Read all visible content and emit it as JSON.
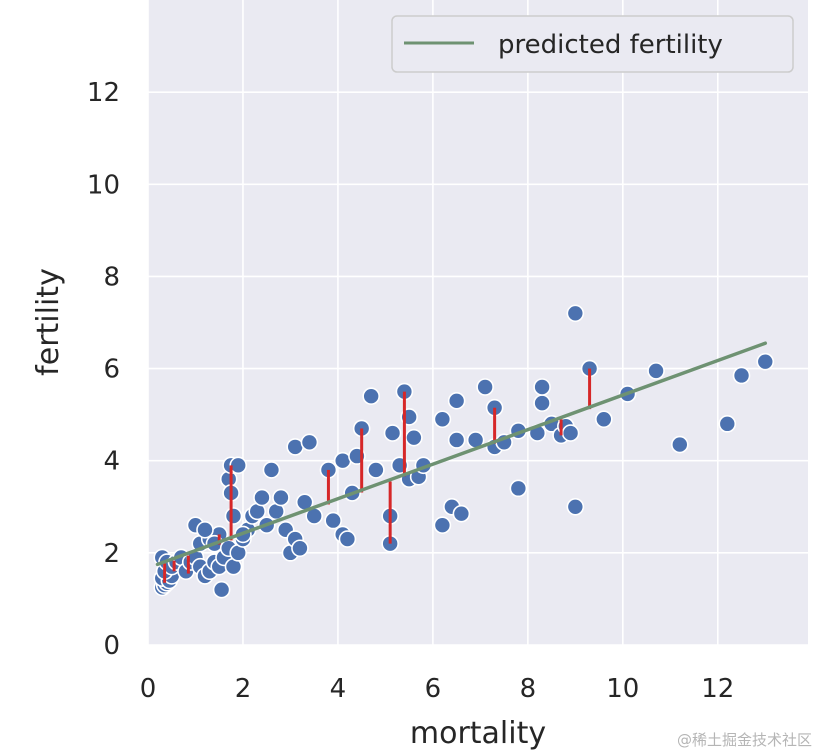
{
  "chart_data": {
    "type": "scatter",
    "xlabel": "mortality",
    "ylabel": "fertility",
    "xlim": [
      0,
      13.9
    ],
    "ylim": [
      0,
      14
    ],
    "x_ticks": [
      "0",
      "2",
      "4",
      "6",
      "8",
      "10",
      "12"
    ],
    "y_ticks": [
      "0",
      "2",
      "4",
      "6",
      "8",
      "10",
      "12"
    ],
    "grid": true,
    "legend": {
      "placement": "top-right",
      "label": "predicted fertility"
    },
    "colors": {
      "background": "#eaeaf2",
      "grid": "#ffffff",
      "points": "#4c72b0",
      "point_edge": "#ffffff",
      "regression_line": "#6e9272",
      "residuals": "#d62728"
    },
    "regression_line": {
      "x": [
        0.2,
        13.0
      ],
      "y": [
        1.75,
        6.55
      ]
    },
    "points": [
      [
        0.3,
        1.25
      ],
      [
        0.35,
        1.3
      ],
      [
        0.4,
        1.35
      ],
      [
        0.3,
        1.45
      ],
      [
        0.45,
        1.4
      ],
      [
        0.5,
        1.5
      ],
      [
        0.35,
        1.6
      ],
      [
        0.3,
        1.9
      ],
      [
        0.4,
        1.8
      ],
      [
        0.5,
        1.7
      ],
      [
        0.6,
        1.8
      ],
      [
        0.7,
        1.9
      ],
      [
        0.8,
        1.6
      ],
      [
        0.9,
        1.8
      ],
      [
        1.0,
        1.9
      ],
      [
        1.1,
        1.7
      ],
      [
        1.2,
        1.5
      ],
      [
        1.3,
        1.6
      ],
      [
        1.4,
        1.8
      ],
      [
        1.5,
        1.7
      ],
      [
        1.55,
        1.2
      ],
      [
        1.6,
        1.9
      ],
      [
        1.1,
        2.2
      ],
      [
        1.3,
        2.3
      ],
      [
        1.5,
        2.4
      ],
      [
        1.0,
        2.6
      ],
      [
        1.2,
        2.5
      ],
      [
        1.4,
        2.2
      ],
      [
        1.7,
        2.1
      ],
      [
        1.8,
        1.7
      ],
      [
        1.9,
        2.0
      ],
      [
        2.0,
        2.3
      ],
      [
        2.1,
        2.5
      ],
      [
        2.2,
        2.8
      ],
      [
        2.3,
        2.9
      ],
      [
        2.4,
        3.2
      ],
      [
        2.5,
        2.6
      ],
      [
        2.6,
        3.8
      ],
      [
        2.7,
        2.9
      ],
      [
        2.8,
        3.2
      ],
      [
        2.9,
        2.5
      ],
      [
        3.0,
        2.0
      ],
      [
        3.1,
        2.3
      ],
      [
        3.2,
        2.1
      ],
      [
        3.3,
        3.1
      ],
      [
        3.5,
        2.8
      ],
      [
        3.1,
        4.3
      ],
      [
        3.4,
        4.4
      ],
      [
        1.7,
        3.6
      ],
      [
        1.75,
        3.3
      ],
      [
        1.75,
        3.9
      ],
      [
        1.8,
        2.8
      ],
      [
        1.9,
        3.9
      ],
      [
        2.0,
        2.4
      ],
      [
        3.8,
        3.8
      ],
      [
        3.9,
        2.7
      ],
      [
        4.1,
        2.4
      ],
      [
        4.2,
        2.3
      ],
      [
        4.1,
        4.0
      ],
      [
        4.3,
        3.3
      ],
      [
        4.4,
        4.1
      ],
      [
        4.5,
        4.7
      ],
      [
        4.7,
        5.4
      ],
      [
        4.8,
        3.8
      ],
      [
        5.1,
        2.2
      ],
      [
        5.1,
        2.8
      ],
      [
        5.15,
        4.6
      ],
      [
        5.3,
        3.9
      ],
      [
        5.4,
        5.5
      ],
      [
        5.5,
        4.95
      ],
      [
        5.6,
        4.5
      ],
      [
        5.5,
        3.6
      ],
      [
        5.7,
        3.65
      ],
      [
        5.8,
        3.9
      ],
      [
        6.2,
        4.9
      ],
      [
        6.2,
        2.6
      ],
      [
        6.4,
        3.0
      ],
      [
        6.5,
        5.3
      ],
      [
        6.6,
        2.85
      ],
      [
        6.5,
        4.45
      ],
      [
        6.9,
        4.45
      ],
      [
        7.1,
        5.6
      ],
      [
        7.3,
        5.15
      ],
      [
        7.3,
        4.3
      ],
      [
        7.5,
        4.4
      ],
      [
        7.8,
        4.65
      ],
      [
        7.8,
        3.4
      ],
      [
        8.2,
        4.6
      ],
      [
        8.3,
        5.25
      ],
      [
        8.3,
        5.6
      ],
      [
        8.5,
        4.8
      ],
      [
        8.7,
        4.55
      ],
      [
        8.8,
        4.75
      ],
      [
        8.9,
        4.6
      ],
      [
        9.0,
        7.2
      ],
      [
        9.0,
        3.0
      ],
      [
        9.3,
        6.0
      ],
      [
        9.6,
        4.9
      ],
      [
        10.1,
        5.45
      ],
      [
        10.7,
        5.95
      ],
      [
        11.2,
        4.35
      ],
      [
        12.2,
        4.8
      ],
      [
        12.5,
        5.85
      ],
      [
        13.0,
        6.15
      ]
    ],
    "residuals": [
      [
        0.35,
        1.35,
        1.77
      ],
      [
        0.55,
        1.6,
        1.83
      ],
      [
        0.85,
        1.55,
        1.94
      ],
      [
        1.15,
        2.05,
        2.05
      ],
      [
        1.5,
        2.4,
        2.18
      ],
      [
        1.75,
        3.9,
        2.27
      ],
      [
        3.8,
        3.8,
        3.05
      ],
      [
        4.5,
        4.7,
        3.31
      ],
      [
        5.1,
        2.2,
        3.55
      ],
      [
        5.4,
        5.5,
        3.66
      ],
      [
        7.3,
        5.15,
        4.37
      ],
      [
        8.7,
        4.55,
        4.9
      ],
      [
        9.3,
        6.0,
        5.12
      ]
    ]
  },
  "watermark": "@稀土掘金技术社区"
}
